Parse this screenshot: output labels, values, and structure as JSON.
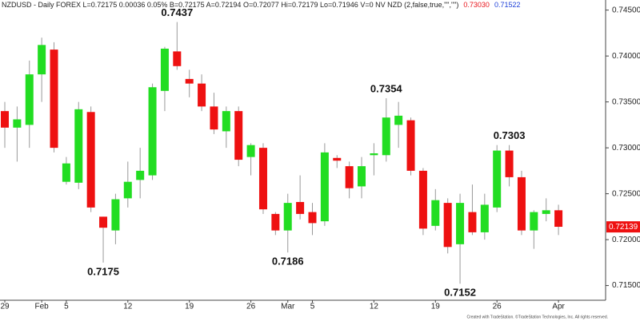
{
  "chart_data": {
    "type": "candlestick",
    "header": {
      "text": "NZDUSD - Daily FOREX  L=0.72175  0.00036  0.05%  B=0.72175  A=0.72194  O=0.72077  Hi=0.72179  Lo=0.71946  V=0  NV NZD (2,false,true,\"\",\"\")",
      "upper": "0.73030",
      "lower": "0.71522",
      "upper_color": "#e8141b",
      "lower_color": "#1c3fd8"
    },
    "categories": [
      "29",
      null,
      null,
      "Feb",
      null,
      "5",
      null,
      null,
      null,
      null,
      "12",
      null,
      null,
      null,
      null,
      "19",
      null,
      null,
      null,
      null,
      "26",
      null,
      null,
      "Mar",
      null,
      "5",
      null,
      null,
      null,
      null,
      "12",
      null,
      null,
      null,
      null,
      "19",
      null,
      null,
      null,
      null,
      "26",
      null,
      null,
      null,
      null,
      "Apr"
    ],
    "open": [
      0.734,
      0.7322,
      0.7325,
      0.738,
      0.7407,
      0.7263,
      0.7262,
      0.7339,
      0.7225,
      0.721,
      0.7245,
      0.7265,
      0.727,
      0.7362,
      0.7405,
      0.7375,
      0.737,
      0.7345,
      0.7318,
      0.734,
      0.729,
      0.73,
      0.7228,
      0.721,
      0.7241,
      0.723,
      0.722,
      0.7289,
      0.728,
      0.7258,
      0.7292,
      0.7292,
      0.7325,
      0.733,
      0.7275,
      0.7215,
      0.724,
      0.7195,
      0.723,
      0.7208,
      0.7235,
      0.7297,
      0.7268,
      0.721,
      0.7228,
      0.7232
    ],
    "high": [
      0.735,
      0.7345,
      0.7395,
      0.742,
      0.7415,
      0.729,
      0.735,
      0.7345,
      0.7225,
      0.725,
      0.7285,
      0.73,
      0.737,
      0.741,
      0.7437,
      0.7385,
      0.738,
      0.736,
      0.7345,
      0.7345,
      0.7305,
      0.7305,
      0.723,
      0.725,
      0.727,
      0.724,
      0.7305,
      0.7292,
      0.7285,
      0.729,
      0.7305,
      0.7354,
      0.735,
      0.7333,
      0.7278,
      0.7255,
      0.7245,
      0.725,
      0.726,
      0.725,
      0.7303,
      0.7303,
      0.7275,
      0.7232,
      0.7245,
      0.7238
    ],
    "low": [
      0.73,
      0.7285,
      0.73,
      0.735,
      0.7295,
      0.726,
      0.7255,
      0.723,
      0.7175,
      0.7195,
      0.7235,
      0.7245,
      0.7265,
      0.734,
      0.7385,
      0.7355,
      0.734,
      0.7315,
      0.73,
      0.728,
      0.727,
      0.7228,
      0.7205,
      0.7186,
      0.7222,
      0.7205,
      0.7215,
      0.7278,
      0.7245,
      0.7245,
      0.727,
      0.7285,
      0.73,
      0.727,
      0.7205,
      0.721,
      0.7185,
      0.7152,
      0.7205,
      0.72,
      0.723,
      0.7258,
      0.7205,
      0.719,
      0.722,
      0.7205
    ],
    "close": [
      0.7322,
      0.7331,
      0.738,
      0.7412,
      0.73,
      0.7283,
      0.7342,
      0.7235,
      0.7213,
      0.7244,
      0.7263,
      0.7275,
      0.7366,
      0.7408,
      0.7389,
      0.737,
      0.7345,
      0.732,
      0.734,
      0.7287,
      0.7303,
      0.7233,
      0.721,
      0.724,
      0.7228,
      0.7218,
      0.7295,
      0.7286,
      0.7256,
      0.728,
      0.7294,
      0.7333,
      0.7335,
      0.7275,
      0.7212,
      0.7243,
      0.7192,
      0.724,
      0.7208,
      0.7238,
      0.7297,
      0.7268,
      0.721,
      0.723,
      0.7232,
      0.7214
    ],
    "up_color": "#22dd22",
    "down_color": "#ee1111",
    "ylim": [
      0.7134,
      0.7461
    ],
    "yticks": [
      {
        "value": 0.745,
        "label": "0.74500"
      },
      {
        "value": 0.74,
        "label": "0.74000"
      },
      {
        "value": 0.735,
        "label": "0.73500"
      },
      {
        "value": 0.73,
        "label": "0.73000"
      },
      {
        "value": 0.725,
        "label": "0.72500"
      },
      {
        "value": 0.72,
        "label": "0.72000"
      },
      {
        "value": 0.715,
        "label": "0.71500"
      }
    ],
    "last_price": 0.72139,
    "last_price_color": "#ee1111",
    "annotations": [
      "0.7437",
      "0.7354",
      "0.7303",
      "0.7175",
      "0.7186",
      "0.7152"
    ],
    "footer": "Created with TradeStation. ©TradeStation Technologies, Inc. All rights reserved."
  }
}
